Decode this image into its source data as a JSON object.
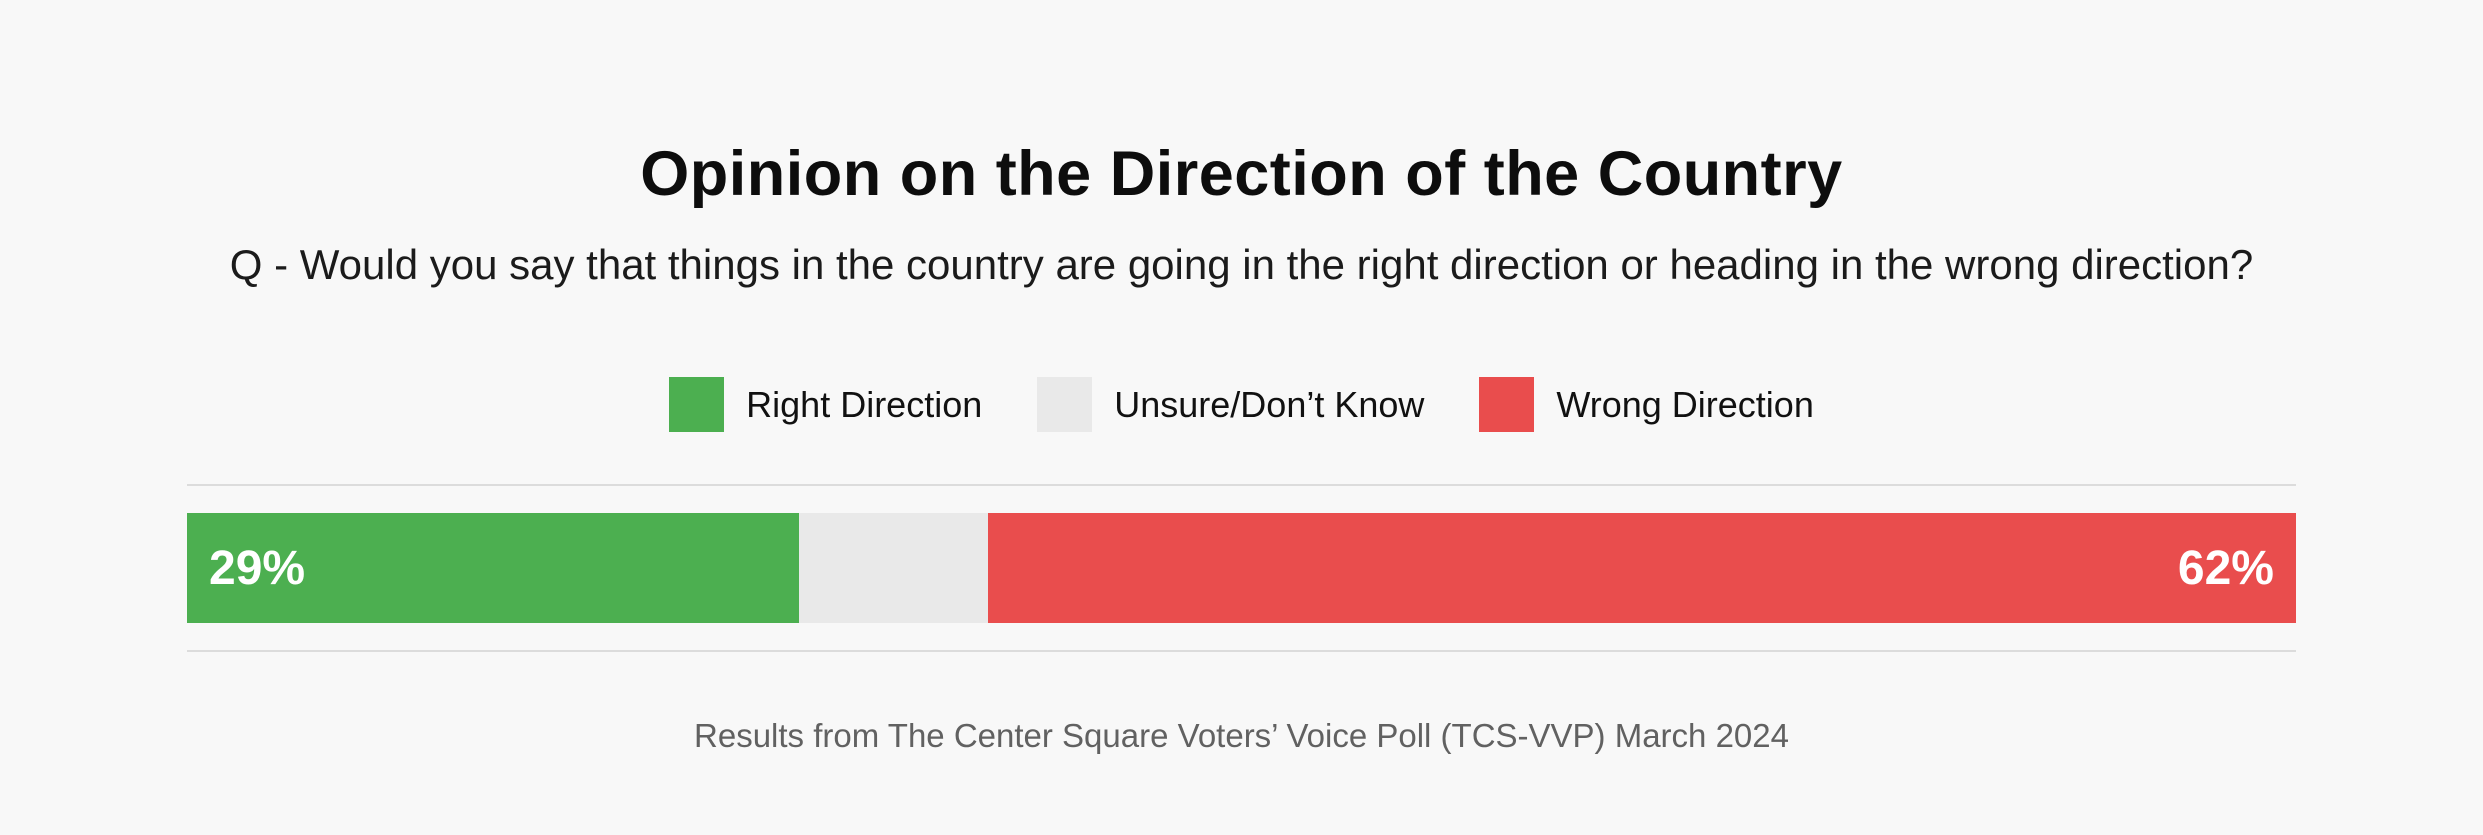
{
  "page": {
    "background": "#f8f8f8",
    "divider_color": "#dcdcdc"
  },
  "header": {
    "title": "Opinion on the Direction of the Country",
    "subtitle": "Q - Would you say that things in the country are going in the right direction or heading in the wrong direction?"
  },
  "legend": {
    "items": [
      {
        "label": "Right Direction",
        "color": "#4caf50"
      },
      {
        "label": "Unsure/Don’t Know",
        "color": "#e9e9e9"
      },
      {
        "label": "Wrong Direction",
        "color": "#e94d4d"
      }
    ]
  },
  "chart_data": {
    "type": "bar",
    "orientation": "horizontal_stacked",
    "title": "Opinion on the Direction of the Country",
    "question": "Q - Would you say that things in the country are going in the right direction or heading in the wrong direction?",
    "categories": [
      "Right Direction",
      "Unsure/Don’t Know",
      "Wrong Direction"
    ],
    "values": [
      29,
      9,
      62
    ],
    "unit": "%",
    "xlim": [
      0,
      100
    ],
    "legend_position": "top-center",
    "grid": false,
    "segments": [
      {
        "name": "Right Direction",
        "value": 29,
        "color": "#4caf50",
        "label": "29%",
        "label_align": "left",
        "label_color": "#ffffff"
      },
      {
        "name": "Unsure/Don’t Know",
        "value": 9,
        "color": "#e9e9e9",
        "label": "",
        "label_align": "none",
        "label_color": "#ffffff"
      },
      {
        "name": "Wrong Direction",
        "value": 62,
        "color": "#e94d4d",
        "label": "62%",
        "label_align": "right",
        "label_color": "#ffffff"
      }
    ],
    "source": "Results from The Center Square Voters’ Voice Poll (TCS-VVP) March 2024"
  },
  "footer": {
    "source": "Results from The Center Square Voters’ Voice Poll (TCS-VVP) March 2024"
  }
}
